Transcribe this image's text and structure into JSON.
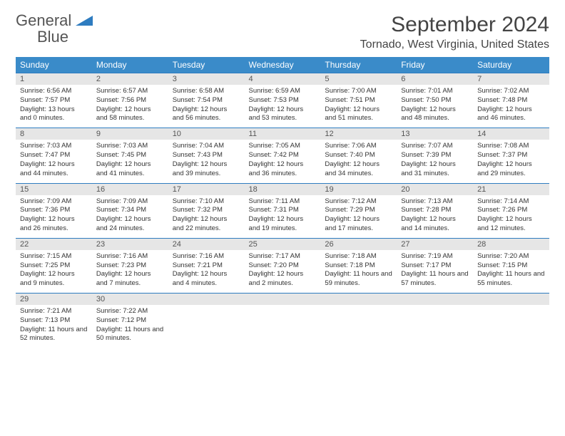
{
  "logo": {
    "text1": "General",
    "text2": "Blue"
  },
  "title": "September 2024",
  "location": "Tornado, West Virginia, United States",
  "dayHeaders": [
    "Sunday",
    "Monday",
    "Tuesday",
    "Wednesday",
    "Thursday",
    "Friday",
    "Saturday"
  ],
  "colors": {
    "headerBg": "#3a8bc9",
    "headerText": "#ffffff",
    "dayNumBg": "#e6e6e6",
    "borderTop": "#2e7cc0",
    "logoGray": "#555555",
    "logoBlue": "#2e7cc0"
  },
  "weeks": [
    [
      {
        "num": "1",
        "sunrise": "Sunrise: 6:56 AM",
        "sunset": "Sunset: 7:57 PM",
        "daylight": "Daylight: 13 hours and 0 minutes."
      },
      {
        "num": "2",
        "sunrise": "Sunrise: 6:57 AM",
        "sunset": "Sunset: 7:56 PM",
        "daylight": "Daylight: 12 hours and 58 minutes."
      },
      {
        "num": "3",
        "sunrise": "Sunrise: 6:58 AM",
        "sunset": "Sunset: 7:54 PM",
        "daylight": "Daylight: 12 hours and 56 minutes."
      },
      {
        "num": "4",
        "sunrise": "Sunrise: 6:59 AM",
        "sunset": "Sunset: 7:53 PM",
        "daylight": "Daylight: 12 hours and 53 minutes."
      },
      {
        "num": "5",
        "sunrise": "Sunrise: 7:00 AM",
        "sunset": "Sunset: 7:51 PM",
        "daylight": "Daylight: 12 hours and 51 minutes."
      },
      {
        "num": "6",
        "sunrise": "Sunrise: 7:01 AM",
        "sunset": "Sunset: 7:50 PM",
        "daylight": "Daylight: 12 hours and 48 minutes."
      },
      {
        "num": "7",
        "sunrise": "Sunrise: 7:02 AM",
        "sunset": "Sunset: 7:48 PM",
        "daylight": "Daylight: 12 hours and 46 minutes."
      }
    ],
    [
      {
        "num": "8",
        "sunrise": "Sunrise: 7:03 AM",
        "sunset": "Sunset: 7:47 PM",
        "daylight": "Daylight: 12 hours and 44 minutes."
      },
      {
        "num": "9",
        "sunrise": "Sunrise: 7:03 AM",
        "sunset": "Sunset: 7:45 PM",
        "daylight": "Daylight: 12 hours and 41 minutes."
      },
      {
        "num": "10",
        "sunrise": "Sunrise: 7:04 AM",
        "sunset": "Sunset: 7:43 PM",
        "daylight": "Daylight: 12 hours and 39 minutes."
      },
      {
        "num": "11",
        "sunrise": "Sunrise: 7:05 AM",
        "sunset": "Sunset: 7:42 PM",
        "daylight": "Daylight: 12 hours and 36 minutes."
      },
      {
        "num": "12",
        "sunrise": "Sunrise: 7:06 AM",
        "sunset": "Sunset: 7:40 PM",
        "daylight": "Daylight: 12 hours and 34 minutes."
      },
      {
        "num": "13",
        "sunrise": "Sunrise: 7:07 AM",
        "sunset": "Sunset: 7:39 PM",
        "daylight": "Daylight: 12 hours and 31 minutes."
      },
      {
        "num": "14",
        "sunrise": "Sunrise: 7:08 AM",
        "sunset": "Sunset: 7:37 PM",
        "daylight": "Daylight: 12 hours and 29 minutes."
      }
    ],
    [
      {
        "num": "15",
        "sunrise": "Sunrise: 7:09 AM",
        "sunset": "Sunset: 7:36 PM",
        "daylight": "Daylight: 12 hours and 26 minutes."
      },
      {
        "num": "16",
        "sunrise": "Sunrise: 7:09 AM",
        "sunset": "Sunset: 7:34 PM",
        "daylight": "Daylight: 12 hours and 24 minutes."
      },
      {
        "num": "17",
        "sunrise": "Sunrise: 7:10 AM",
        "sunset": "Sunset: 7:32 PM",
        "daylight": "Daylight: 12 hours and 22 minutes."
      },
      {
        "num": "18",
        "sunrise": "Sunrise: 7:11 AM",
        "sunset": "Sunset: 7:31 PM",
        "daylight": "Daylight: 12 hours and 19 minutes."
      },
      {
        "num": "19",
        "sunrise": "Sunrise: 7:12 AM",
        "sunset": "Sunset: 7:29 PM",
        "daylight": "Daylight: 12 hours and 17 minutes."
      },
      {
        "num": "20",
        "sunrise": "Sunrise: 7:13 AM",
        "sunset": "Sunset: 7:28 PM",
        "daylight": "Daylight: 12 hours and 14 minutes."
      },
      {
        "num": "21",
        "sunrise": "Sunrise: 7:14 AM",
        "sunset": "Sunset: 7:26 PM",
        "daylight": "Daylight: 12 hours and 12 minutes."
      }
    ],
    [
      {
        "num": "22",
        "sunrise": "Sunrise: 7:15 AM",
        "sunset": "Sunset: 7:25 PM",
        "daylight": "Daylight: 12 hours and 9 minutes."
      },
      {
        "num": "23",
        "sunrise": "Sunrise: 7:16 AM",
        "sunset": "Sunset: 7:23 PM",
        "daylight": "Daylight: 12 hours and 7 minutes."
      },
      {
        "num": "24",
        "sunrise": "Sunrise: 7:16 AM",
        "sunset": "Sunset: 7:21 PM",
        "daylight": "Daylight: 12 hours and 4 minutes."
      },
      {
        "num": "25",
        "sunrise": "Sunrise: 7:17 AM",
        "sunset": "Sunset: 7:20 PM",
        "daylight": "Daylight: 12 hours and 2 minutes."
      },
      {
        "num": "26",
        "sunrise": "Sunrise: 7:18 AM",
        "sunset": "Sunset: 7:18 PM",
        "daylight": "Daylight: 11 hours and 59 minutes."
      },
      {
        "num": "27",
        "sunrise": "Sunrise: 7:19 AM",
        "sunset": "Sunset: 7:17 PM",
        "daylight": "Daylight: 11 hours and 57 minutes."
      },
      {
        "num": "28",
        "sunrise": "Sunrise: 7:20 AM",
        "sunset": "Sunset: 7:15 PM",
        "daylight": "Daylight: 11 hours and 55 minutes."
      }
    ],
    [
      {
        "num": "29",
        "sunrise": "Sunrise: 7:21 AM",
        "sunset": "Sunset: 7:13 PM",
        "daylight": "Daylight: 11 hours and 52 minutes."
      },
      {
        "num": "30",
        "sunrise": "Sunrise: 7:22 AM",
        "sunset": "Sunset: 7:12 PM",
        "daylight": "Daylight: 11 hours and 50 minutes."
      },
      {
        "empty": true
      },
      {
        "empty": true
      },
      {
        "empty": true
      },
      {
        "empty": true
      },
      {
        "empty": true
      }
    ]
  ]
}
